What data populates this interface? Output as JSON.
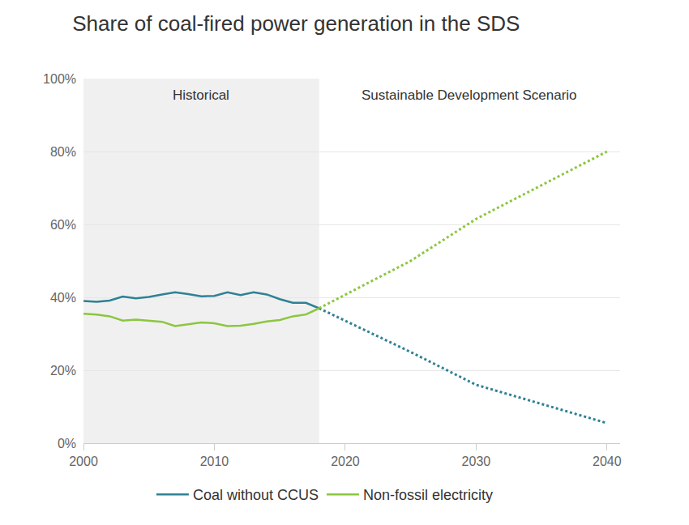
{
  "chart_data": {
    "type": "line",
    "title": "Share of coal-fired power generation in the SDS",
    "annotations": [
      {
        "text": "Historical"
      },
      {
        "text": "Sustainable Development Scenario"
      }
    ],
    "x": [
      2000,
      2001,
      2002,
      2003,
      2004,
      2005,
      2006,
      2007,
      2008,
      2009,
      2010,
      2011,
      2012,
      2013,
      2014,
      2015,
      2016,
      2017,
      2018,
      2025,
      2030,
      2040
    ],
    "series": [
      {
        "name": "Coal without CCUS",
        "color": "#2e8196",
        "line_style": "solid",
        "values": [
          39,
          38.8,
          39.1,
          40.2,
          39.7,
          40.1,
          40.8,
          41.4,
          40.9,
          40.3,
          40.4,
          41.4,
          40.6,
          41.4,
          40.8,
          39.5,
          38.5,
          38.5,
          37,
          null,
          null,
          null
        ]
      },
      {
        "name": "Non-fossil electricity",
        "color": "#8cc63f",
        "line_style": "solid",
        "values": [
          35.5,
          35.3,
          34.8,
          33.6,
          33.9,
          33.6,
          33.3,
          32.1,
          32.6,
          33.1,
          32.9,
          32.1,
          32.2,
          32.7,
          33.4,
          33.8,
          34.8,
          35.3,
          37,
          null,
          null,
          null
        ]
      },
      {
        "name": "Coal without CCUS",
        "color": "#2e8196",
        "line_style": "dotted",
        "values": [
          null,
          null,
          null,
          null,
          null,
          null,
          null,
          null,
          null,
          null,
          null,
          null,
          null,
          null,
          null,
          null,
          null,
          null,
          37,
          25,
          16,
          5.5
        ]
      },
      {
        "name": "Non-fossil electricity",
        "color": "#8cc63f",
        "line_style": "dotted",
        "values": [
          null,
          null,
          null,
          null,
          null,
          null,
          null,
          null,
          null,
          null,
          null,
          null,
          null,
          null,
          null,
          null,
          null,
          null,
          37,
          50,
          61.5,
          80
        ]
      }
    ],
    "xlim": [
      2000,
      2041
    ],
    "xticks": [
      2000,
      2010,
      2020,
      2030,
      2040
    ],
    "ylim": [
      0,
      100
    ],
    "yticks": [
      {
        "value": 0,
        "label": "0%"
      },
      {
        "value": 20,
        "label": "20%"
      },
      {
        "value": 40,
        "label": "40%"
      },
      {
        "value": 60,
        "label": "60%"
      },
      {
        "value": 80,
        "label": "80%"
      },
      {
        "value": 100,
        "label": "100%"
      }
    ],
    "grid": "y",
    "legend": "bottom"
  }
}
